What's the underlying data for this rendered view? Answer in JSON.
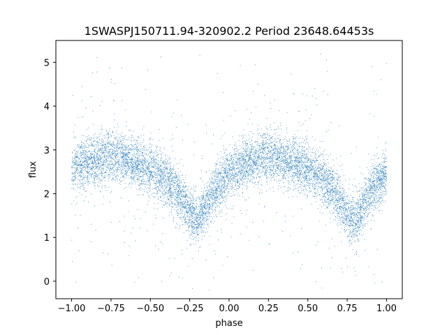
{
  "chart_data": {
    "type": "scatter",
    "title": "1SWASPJ150711.94-320902.2 Period 23648.64453s",
    "xlabel": "phase",
    "ylabel": "flux",
    "xlim": [
      -1.1,
      1.1
    ],
    "ylim": [
      -0.4,
      5.5
    ],
    "xticks": [
      -1.0,
      -0.75,
      -0.5,
      -0.25,
      0.0,
      0.25,
      0.5,
      0.75,
      1.0
    ],
    "xtick_labels": [
      "−1.00",
      "−0.75",
      "−0.50",
      "−0.25",
      "0.00",
      "0.25",
      "0.50",
      "0.75",
      "1.00"
    ],
    "yticks": [
      0,
      1,
      2,
      3,
      4,
      5
    ],
    "ytick_labels": [
      "0",
      "1",
      "2",
      "3",
      "4",
      "5"
    ],
    "grid": false,
    "point_color": "#1f77b4",
    "series": [
      {
        "trend_x": [
          -1.0,
          -0.9,
          -0.8,
          -0.75,
          -0.7,
          -0.6,
          -0.5,
          -0.4,
          -0.3,
          -0.25,
          -0.2,
          -0.15,
          -0.1,
          0.0,
          0.1,
          0.2,
          0.25,
          0.3,
          0.4,
          0.5,
          0.6,
          0.7,
          0.75,
          0.8,
          0.85,
          0.9,
          1.0
        ],
        "trend_y": [
          2.55,
          2.7,
          2.82,
          2.85,
          2.82,
          2.72,
          2.55,
          2.3,
          1.9,
          1.55,
          1.35,
          1.7,
          2.05,
          2.45,
          2.7,
          2.82,
          2.85,
          2.82,
          2.72,
          2.55,
          2.3,
          1.9,
          1.55,
          1.35,
          1.7,
          2.05,
          2.45
        ],
        "scatter_sigma": 0.28,
        "outlier_fraction": 0.06,
        "point_count": 9000
      }
    ]
  }
}
